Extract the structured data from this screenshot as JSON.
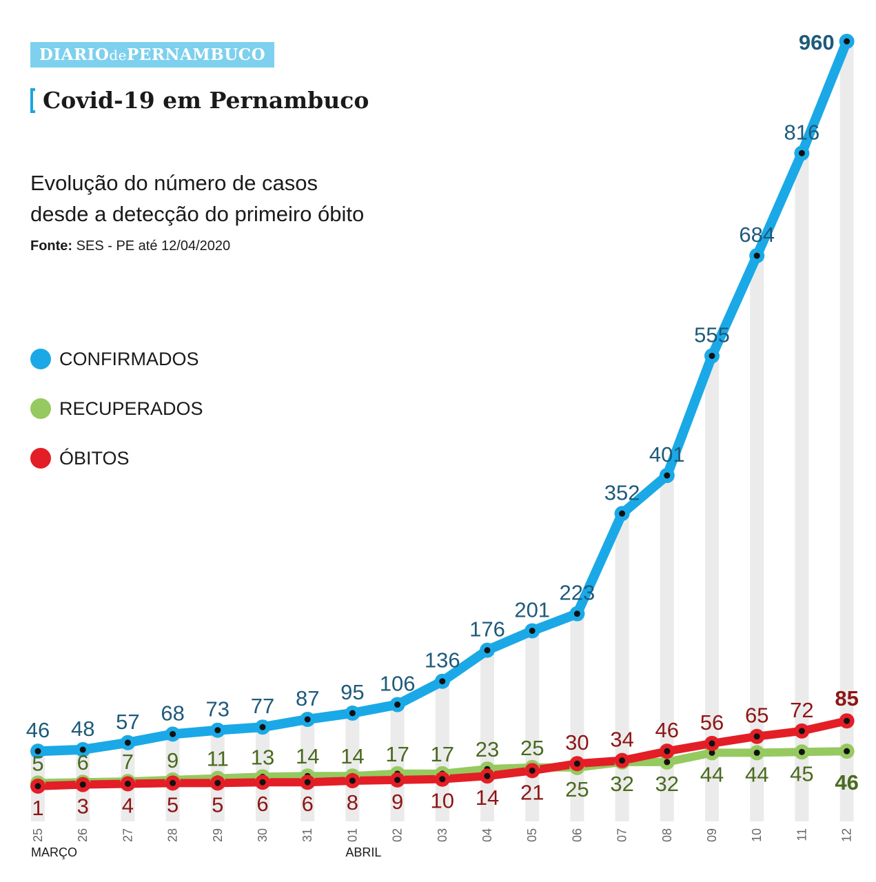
{
  "brand": {
    "part1": "DIARIO",
    "part2": "de",
    "part3": "PERNAMBUCO"
  },
  "title": "Covid-19 em Pernambuco",
  "subtitle_line1": "Evolução do número de casos",
  "subtitle_line2": "desde a detecção do primeiro óbito",
  "source_label": "Fonte:",
  "source_text": " SES - PE até 12/04/2020",
  "legend": [
    {
      "label": "CONFIRMADOS",
      "color": "#1aa9e6"
    },
    {
      "label": "RECUPERADOS",
      "color": "#96c95f"
    },
    {
      "label": "ÓBITOS",
      "color": "#e31e26"
    }
  ],
  "chart_data": {
    "type": "line",
    "categories": [
      "25",
      "26",
      "27",
      "28",
      "29",
      "30",
      "31",
      "01",
      "02",
      "03",
      "04",
      "05",
      "06",
      "07",
      "08",
      "09",
      "10",
      "11",
      "12"
    ],
    "month_labels": [
      {
        "label": "MARÇO",
        "index": 0
      },
      {
        "label": "ABRIL",
        "index": 7
      }
    ],
    "series": [
      {
        "name": "CONFIRMADOS",
        "color": "#1aa9e6",
        "label_color": "#1e5a7a",
        "values": [
          46,
          48,
          57,
          68,
          73,
          77,
          87,
          95,
          106,
          136,
          176,
          201,
          223,
          352,
          401,
          555,
          684,
          816,
          960
        ]
      },
      {
        "name": "RECUPERADOS",
        "color": "#96c95f",
        "label_color": "#4a6a1e",
        "values": [
          5,
          6,
          7,
          9,
          11,
          13,
          14,
          14,
          17,
          17,
          23,
          25,
          25,
          32,
          32,
          44,
          44,
          45,
          46
        ]
      },
      {
        "name": "ÓBITOS",
        "color": "#e31e26",
        "label_color": "#8e1515",
        "values": [
          1,
          3,
          4,
          5,
          5,
          6,
          6,
          8,
          9,
          10,
          14,
          21,
          30,
          34,
          46,
          56,
          65,
          72,
          85
        ]
      }
    ]
  }
}
